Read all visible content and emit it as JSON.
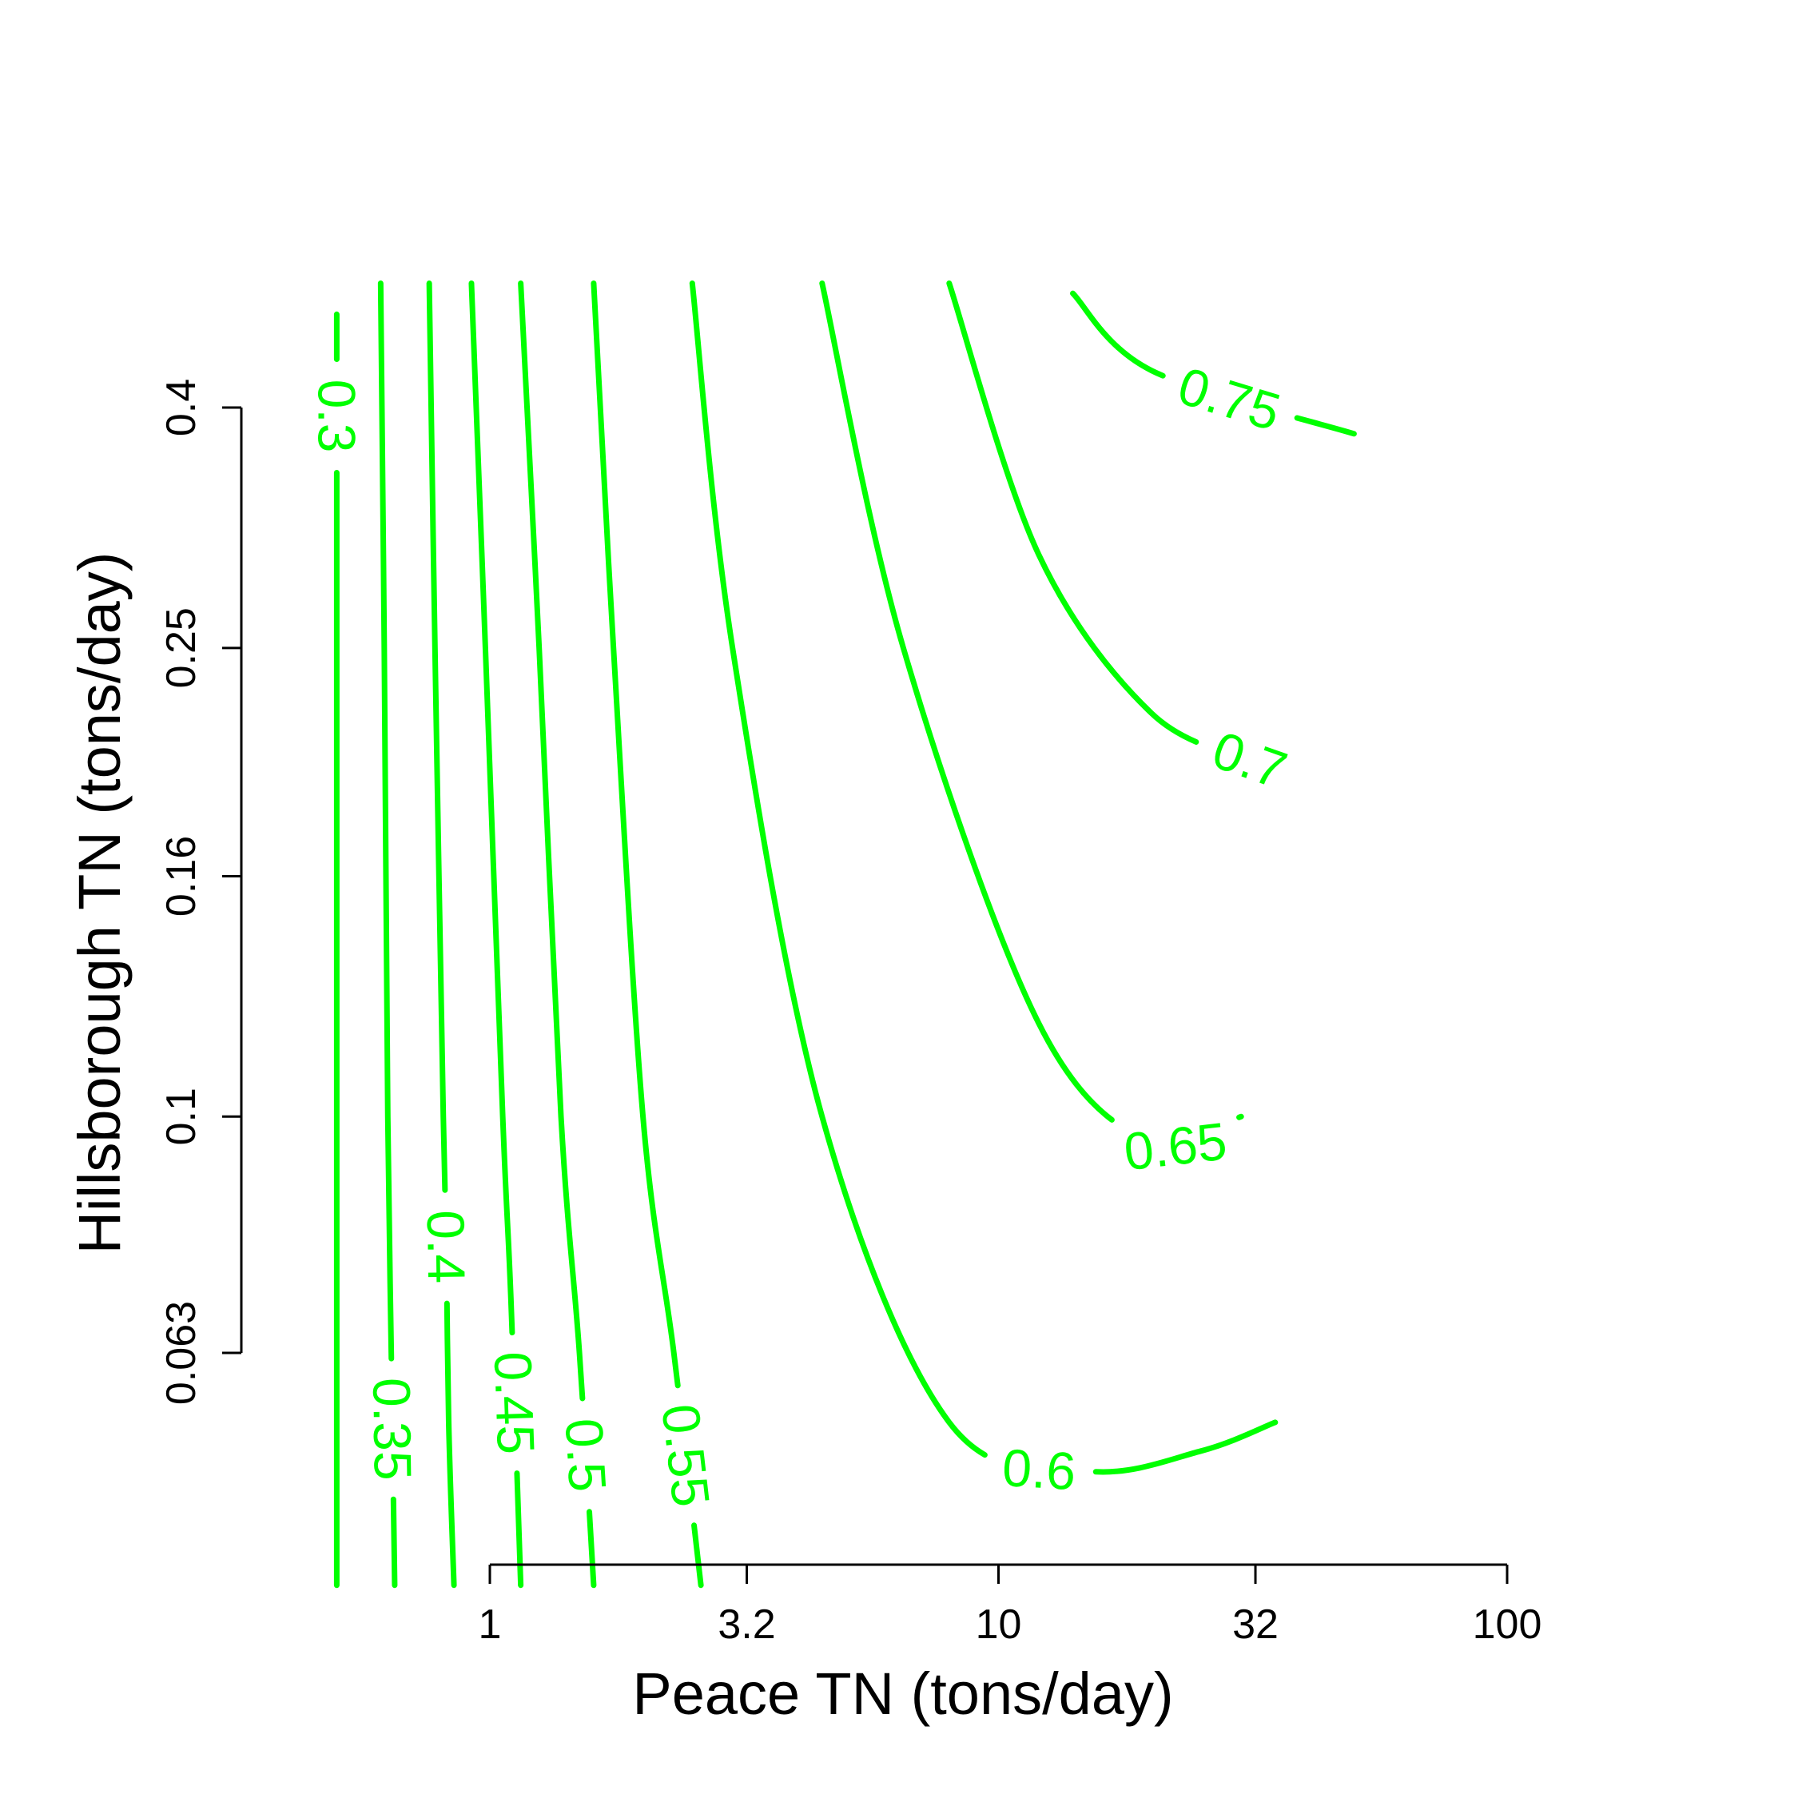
{
  "chart_data": {
    "type": "contour",
    "title": "",
    "xlabel": "Peace TN (tons/day)",
    "ylabel": "Hillsborough TN (tons/day)",
    "x_scale": "log",
    "y_scale": "log",
    "x_ticks": [
      {
        "value": 1,
        "label": "1"
      },
      {
        "value": 3.2,
        "label": "3.2"
      },
      {
        "value": 10,
        "label": "10"
      },
      {
        "value": 32,
        "label": "32"
      },
      {
        "value": 100,
        "label": "100"
      }
    ],
    "y_ticks": [
      {
        "value": 0.063,
        "label": "0.063"
      },
      {
        "value": 0.1,
        "label": "0.1"
      },
      {
        "value": 0.16,
        "label": "0.16"
      },
      {
        "value": 0.25,
        "label": "0.25"
      },
      {
        "value": 0.4,
        "label": "0.4"
      }
    ],
    "line_color": "#00ff00",
    "contours": [
      {
        "level": "0.3",
        "points": [
          [
            0.5,
            0.48
          ],
          [
            0.5,
            0.4
          ],
          [
            0.5,
            0.25
          ],
          [
            0.5,
            0.1
          ],
          [
            0.5,
            0.04
          ]
        ]
      },
      {
        "level": "0.35",
        "points": [
          [
            0.61,
            0.51
          ],
          [
            0.62,
            0.25
          ],
          [
            0.63,
            0.1
          ],
          [
            0.64,
            0.063
          ],
          [
            0.65,
            0.04
          ]
        ]
      },
      {
        "level": "0.4",
        "points": [
          [
            0.76,
            0.51
          ],
          [
            0.78,
            0.25
          ],
          [
            0.81,
            0.1
          ],
          [
            0.82,
            0.08
          ],
          [
            0.83,
            0.055
          ],
          [
            0.85,
            0.04
          ]
        ]
      },
      {
        "level": "0.45",
        "points": [
          [
            0.92,
            0.51
          ],
          [
            0.98,
            0.25
          ],
          [
            1.06,
            0.1
          ],
          [
            1.1,
            0.07
          ],
          [
            1.15,
            0.04
          ]
        ]
      },
      {
        "level": "0.5",
        "points": [
          [
            1.15,
            0.51
          ],
          [
            1.25,
            0.25
          ],
          [
            1.38,
            0.1
          ],
          [
            1.5,
            0.063
          ],
          [
            1.6,
            0.04
          ]
        ]
      },
      {
        "level": "0.55",
        "points": [
          [
            1.6,
            0.51
          ],
          [
            1.75,
            0.25
          ],
          [
            2.0,
            0.1
          ],
          [
            2.3,
            0.063
          ],
          [
            2.6,
            0.04
          ]
        ]
      },
      {
        "level": "0.6",
        "points": [
          [
            2.5,
            0.51
          ],
          [
            3.0,
            0.25
          ],
          [
            4.5,
            0.1
          ],
          [
            8.0,
            0.055
          ],
          [
            15,
            0.05
          ],
          [
            25,
            0.052
          ],
          [
            35,
            0.055
          ]
        ]
      },
      {
        "level": "0.65",
        "points": [
          [
            4.5,
            0.51
          ],
          [
            6.5,
            0.25
          ],
          [
            12,
            0.12
          ],
          [
            20,
            0.095
          ],
          [
            30,
            0.1
          ]
        ]
      },
      {
        "level": "0.7",
        "points": [
          [
            8.0,
            0.51
          ],
          [
            12,
            0.3
          ],
          [
            20,
            0.22
          ],
          [
            32,
            0.2
          ]
        ]
      },
      {
        "level": "0.75",
        "points": [
          [
            14,
            0.5
          ],
          [
            20,
            0.43
          ],
          [
            50,
            0.38
          ]
        ]
      }
    ],
    "grid": false,
    "legend": "none"
  }
}
